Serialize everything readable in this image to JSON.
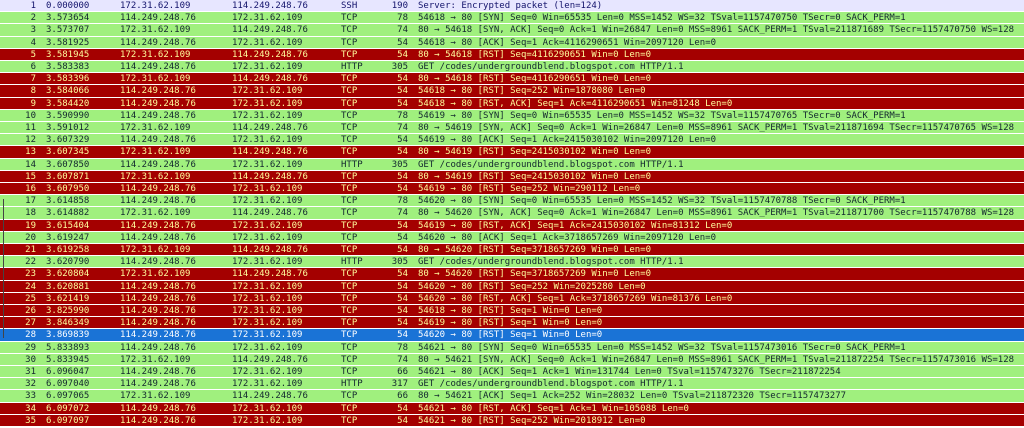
{
  "colors": {
    "ssh_bg": "#e7e6ff",
    "tcp_bg": "#a0f07e",
    "rst_bg": "#a40000",
    "rst_fg": "#fffc9c",
    "selected_bg": "#1a73d6"
  },
  "packets": [
    {
      "no": "1",
      "time": "0.000000",
      "src": "172.31.62.109",
      "dst": "114.249.248.76",
      "proto": "SSH",
      "len": "190",
      "info": "Server: Encrypted packet (len=124)",
      "cls": "ssh"
    },
    {
      "no": "2",
      "time": "3.573654",
      "src": "114.249.248.76",
      "dst": "172.31.62.109",
      "proto": "TCP",
      "len": "78",
      "info": "54618 → 80 [SYN] Seq=0 Win=65535 Len=0 MSS=1452 WS=32 TSval=1157470750 TSecr=0 SACK_PERM=1",
      "cls": "tcp"
    },
    {
      "no": "3",
      "time": "3.573707",
      "src": "172.31.62.109",
      "dst": "114.249.248.76",
      "proto": "TCP",
      "len": "74",
      "info": "80 → 54618 [SYN, ACK] Seq=0 Ack=1 Win=26847 Len=0 MSS=8961 SACK_PERM=1 TSval=211871689 TSecr=1157470750 WS=128",
      "cls": "tcp"
    },
    {
      "no": "4",
      "time": "3.581925",
      "src": "114.249.248.76",
      "dst": "172.31.62.109",
      "proto": "TCP",
      "len": "54",
      "info": "54618 → 80 [ACK] Seq=1 Ack=4116290651 Win=2097120 Len=0",
      "cls": "tcp"
    },
    {
      "no": "5",
      "time": "3.581945",
      "src": "172.31.62.109",
      "dst": "114.249.248.76",
      "proto": "TCP",
      "len": "54",
      "info": "80 → 54618 [RST] Seq=4116290651 Win=0 Len=0",
      "cls": "rst"
    },
    {
      "no": "6",
      "time": "3.583383",
      "src": "114.249.248.76",
      "dst": "172.31.62.109",
      "proto": "HTTP",
      "len": "305",
      "info": "GET /codes/undergroundblend.blogspot.com HTTP/1.1",
      "cls": "http"
    },
    {
      "no": "7",
      "time": "3.583396",
      "src": "172.31.62.109",
      "dst": "114.249.248.76",
      "proto": "TCP",
      "len": "54",
      "info": "80 → 54618 [RST] Seq=4116290651 Win=0 Len=0",
      "cls": "rst"
    },
    {
      "no": "8",
      "time": "3.584066",
      "src": "114.249.248.76",
      "dst": "172.31.62.109",
      "proto": "TCP",
      "len": "54",
      "info": "54618 → 80 [RST] Seq=252 Win=1878080 Len=0",
      "cls": "rst"
    },
    {
      "no": "9",
      "time": "3.584420",
      "src": "114.249.248.76",
      "dst": "172.31.62.109",
      "proto": "TCP",
      "len": "54",
      "info": "54618 → 80 [RST, ACK] Seq=1 Ack=4116290651 Win=81248 Len=0",
      "cls": "rst"
    },
    {
      "no": "10",
      "time": "3.590990",
      "src": "114.249.248.76",
      "dst": "172.31.62.109",
      "proto": "TCP",
      "len": "78",
      "info": "54619 → 80 [SYN] Seq=0 Win=65535 Len=0 MSS=1452 WS=32 TSval=1157470765 TSecr=0 SACK_PERM=1",
      "cls": "tcp"
    },
    {
      "no": "11",
      "time": "3.591012",
      "src": "172.31.62.109",
      "dst": "114.249.248.76",
      "proto": "TCP",
      "len": "74",
      "info": "80 → 54619 [SYN, ACK] Seq=0 Ack=1 Win=26847 Len=0 MSS=8961 SACK_PERM=1 TSval=211871694 TSecr=1157470765 WS=128",
      "cls": "tcp"
    },
    {
      "no": "12",
      "time": "3.607329",
      "src": "114.249.248.76",
      "dst": "172.31.62.109",
      "proto": "TCP",
      "len": "54",
      "info": "54619 → 80 [ACK] Seq=1 Ack=2415030102 Win=2097120 Len=0",
      "cls": "tcp"
    },
    {
      "no": "13",
      "time": "3.607345",
      "src": "172.31.62.109",
      "dst": "114.249.248.76",
      "proto": "TCP",
      "len": "54",
      "info": "80 → 54619 [RST] Seq=2415030102 Win=0 Len=0",
      "cls": "rst"
    },
    {
      "no": "14",
      "time": "3.607850",
      "src": "114.249.248.76",
      "dst": "172.31.62.109",
      "proto": "HTTP",
      "len": "305",
      "info": "GET /codes/undergroundblend.blogspot.com HTTP/1.1",
      "cls": "http"
    },
    {
      "no": "15",
      "time": "3.607871",
      "src": "172.31.62.109",
      "dst": "114.249.248.76",
      "proto": "TCP",
      "len": "54",
      "info": "80 → 54619 [RST] Seq=2415030102 Win=0 Len=0",
      "cls": "rst"
    },
    {
      "no": "16",
      "time": "3.607950",
      "src": "114.249.248.76",
      "dst": "172.31.62.109",
      "proto": "TCP",
      "len": "54",
      "info": "54619 → 80 [RST] Seq=252 Win=290112 Len=0",
      "cls": "rst"
    },
    {
      "no": "17",
      "time": "3.614858",
      "src": "114.249.248.76",
      "dst": "172.31.62.109",
      "proto": "TCP",
      "len": "78",
      "info": "54620 → 80 [SYN] Seq=0 Win=65535 Len=0 MSS=1452 WS=32 TSval=1157470788 TSecr=0 SACK_PERM=1",
      "cls": "tcp"
    },
    {
      "no": "18",
      "time": "3.614882",
      "src": "172.31.62.109",
      "dst": "114.249.248.76",
      "proto": "TCP",
      "len": "74",
      "info": "80 → 54620 [SYN, ACK] Seq=0 Ack=1 Win=26847 Len=0 MSS=8961 SACK_PERM=1 TSval=211871700 TSecr=1157470788 WS=128",
      "cls": "tcp"
    },
    {
      "no": "19",
      "time": "3.615404",
      "src": "114.249.248.76",
      "dst": "172.31.62.109",
      "proto": "TCP",
      "len": "54",
      "info": "54619 → 80 [RST, ACK] Seq=1 Ack=2415030102 Win=81312 Len=0",
      "cls": "rst"
    },
    {
      "no": "20",
      "time": "3.619247",
      "src": "114.249.248.76",
      "dst": "172.31.62.109",
      "proto": "TCP",
      "len": "54",
      "info": "54620 → 80 [ACK] Seq=1 Ack=3718657269 Win=2097120 Len=0",
      "cls": "tcp"
    },
    {
      "no": "21",
      "time": "3.619258",
      "src": "172.31.62.109",
      "dst": "114.249.248.76",
      "proto": "TCP",
      "len": "54",
      "info": "80 → 54620 [RST] Seq=3718657269 Win=0 Len=0",
      "cls": "rst"
    },
    {
      "no": "22",
      "time": "3.620790",
      "src": "114.249.248.76",
      "dst": "172.31.62.109",
      "proto": "HTTP",
      "len": "305",
      "info": "GET /codes/undergroundblend.blogspot.com HTTP/1.1",
      "cls": "http"
    },
    {
      "no": "23",
      "time": "3.620804",
      "src": "172.31.62.109",
      "dst": "114.249.248.76",
      "proto": "TCP",
      "len": "54",
      "info": "80 → 54620 [RST] Seq=3718657269 Win=0 Len=0",
      "cls": "rst"
    },
    {
      "no": "24",
      "time": "3.620881",
      "src": "114.249.248.76",
      "dst": "172.31.62.109",
      "proto": "TCP",
      "len": "54",
      "info": "54620 → 80 [RST] Seq=252 Win=2025280 Len=0",
      "cls": "rst"
    },
    {
      "no": "25",
      "time": "3.621419",
      "src": "114.249.248.76",
      "dst": "172.31.62.109",
      "proto": "TCP",
      "len": "54",
      "info": "54620 → 80 [RST, ACK] Seq=1 Ack=3718657269 Win=81376 Len=0",
      "cls": "rst"
    },
    {
      "no": "26",
      "time": "3.825990",
      "src": "114.249.248.76",
      "dst": "172.31.62.109",
      "proto": "TCP",
      "len": "54",
      "info": "54618 → 80 [RST] Seq=1 Win=0 Len=0",
      "cls": "rst"
    },
    {
      "no": "27",
      "time": "3.846349",
      "src": "114.249.248.76",
      "dst": "172.31.62.109",
      "proto": "TCP",
      "len": "54",
      "info": "54619 → 80 [RST] Seq=1 Win=0 Len=0",
      "cls": "rst"
    },
    {
      "no": "28",
      "time": "3.869839",
      "src": "114.249.248.76",
      "dst": "172.31.62.109",
      "proto": "TCP",
      "len": "54",
      "info": "54620 → 80 [RST] Seq=1 Win=0 Len=0",
      "cls": "sel"
    },
    {
      "no": "29",
      "time": "5.833893",
      "src": "114.249.248.76",
      "dst": "172.31.62.109",
      "proto": "TCP",
      "len": "78",
      "info": "54621 → 80 [SYN] Seq=0 Win=65535 Len=0 MSS=1452 WS=32 TSval=1157473016 TSecr=0 SACK_PERM=1",
      "cls": "tcp"
    },
    {
      "no": "30",
      "time": "5.833945",
      "src": "172.31.62.109",
      "dst": "114.249.248.76",
      "proto": "TCP",
      "len": "74",
      "info": "80 → 54621 [SYN, ACK] Seq=0 Ack=1 Win=26847 Len=0 MSS=8961 SACK_PERM=1 TSval=211872254 TSecr=1157473016 WS=128",
      "cls": "tcp"
    },
    {
      "no": "31",
      "time": "6.096047",
      "src": "114.249.248.76",
      "dst": "172.31.62.109",
      "proto": "TCP",
      "len": "66",
      "info": "54621 → 80 [ACK] Seq=1 Ack=1 Win=131744 Len=0 TSval=1157473276 TSecr=211872254",
      "cls": "tcp"
    },
    {
      "no": "32",
      "time": "6.097040",
      "src": "114.249.248.76",
      "dst": "172.31.62.109",
      "proto": "HTTP",
      "len": "317",
      "info": "GET /codes/undergroundblend.blogspot.com HTTP/1.1",
      "cls": "http"
    },
    {
      "no": "33",
      "time": "6.097065",
      "src": "172.31.62.109",
      "dst": "114.249.248.76",
      "proto": "TCP",
      "len": "66",
      "info": "80 → 54621 [ACK] Seq=1 Ack=252 Win=28032 Len=0 TSval=211872320 TSecr=1157473277",
      "cls": "tcp"
    },
    {
      "no": "34",
      "time": "6.097072",
      "src": "114.249.248.76",
      "dst": "172.31.62.109",
      "proto": "TCP",
      "len": "54",
      "info": "54621 → 80 [RST, ACK] Seq=1 Ack=1 Win=105088 Len=0",
      "cls": "rst"
    },
    {
      "no": "35",
      "time": "6.097097",
      "src": "114.249.248.76",
      "dst": "172.31.62.109",
      "proto": "TCP",
      "len": "54",
      "info": "54621 → 80 [RST] Seq=252 Win=2018912 Len=0",
      "cls": "rst"
    }
  ]
}
